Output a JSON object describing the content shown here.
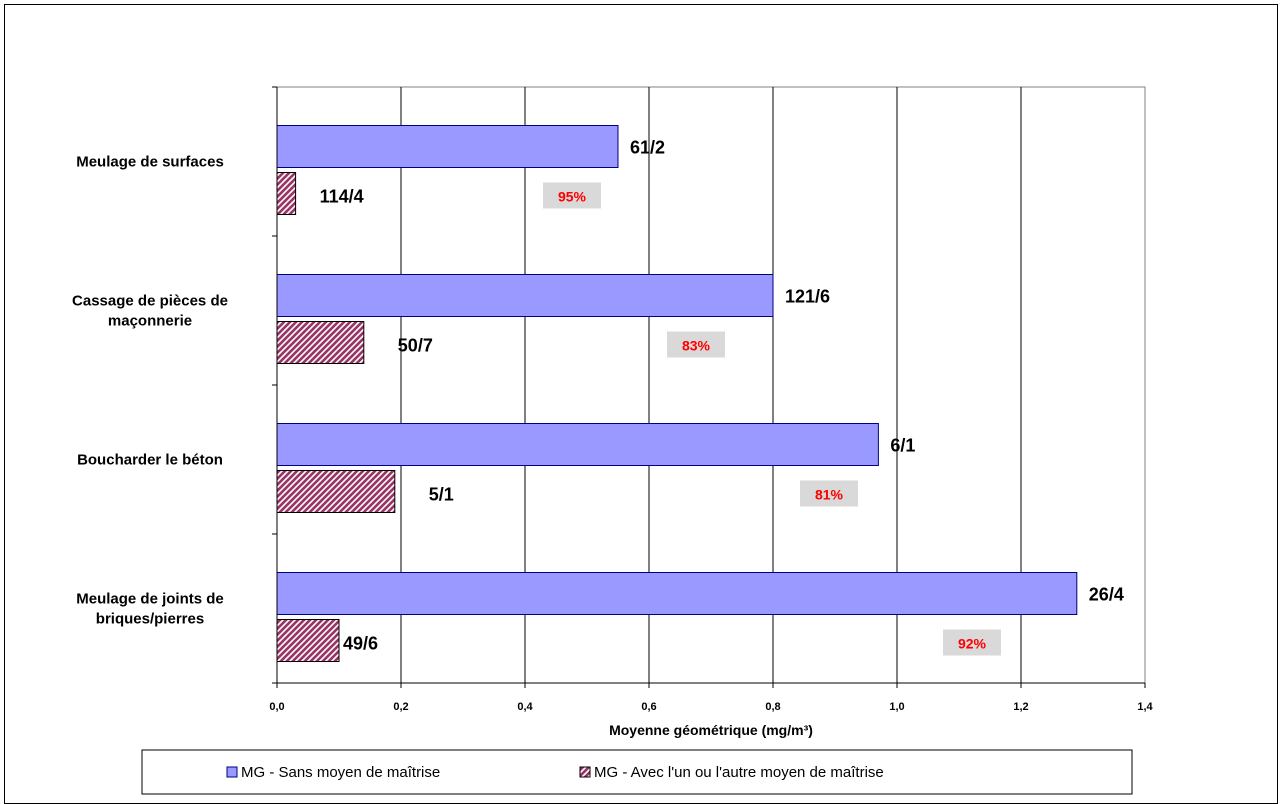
{
  "chart_data": {
    "type": "bar",
    "orientation": "horizontal",
    "categories": [
      [
        "Meulage de surfaces"
      ],
      [
        "Cassage de pièces de",
        "maçonnerie"
      ],
      [
        "Boucharder le béton"
      ],
      [
        "Meulage de joints de",
        "briques/pierres"
      ]
    ],
    "series": [
      {
        "name": "MG - Sans moyen de maîtrise",
        "values": [
          0.55,
          0.8,
          0.97,
          1.29
        ],
        "labels": [
          "61/2",
          "121/6",
          "6/1",
          "26/4"
        ],
        "color": "#9999ff",
        "pattern": "solid"
      },
      {
        "name": "MG - Avec l'un ou l'autre moyen de maîtrise",
        "values": [
          0.03,
          0.14,
          0.19,
          0.1
        ],
        "labels": [
          "114/4",
          "50/7",
          "5/1",
          "49/6"
        ],
        "color": "#993366",
        "pattern": "diagonal-hatch"
      }
    ],
    "reductions": [
      "95%",
      "83%",
      "81%",
      "92%"
    ],
    "reduction_color": "#ff0000",
    "reduction_bg": "#d9d9d9",
    "xlabel": "Moyenne géométrique (mg/m³)",
    "ylabel": "",
    "title": "",
    "xlim": [
      0,
      1.4
    ],
    "xticks": [
      "0,0",
      "0,2",
      "0,4",
      "0,6",
      "0,8",
      "1,0",
      "1,2",
      "1,4"
    ],
    "grid": "vertical",
    "legend_position": "bottom"
  }
}
